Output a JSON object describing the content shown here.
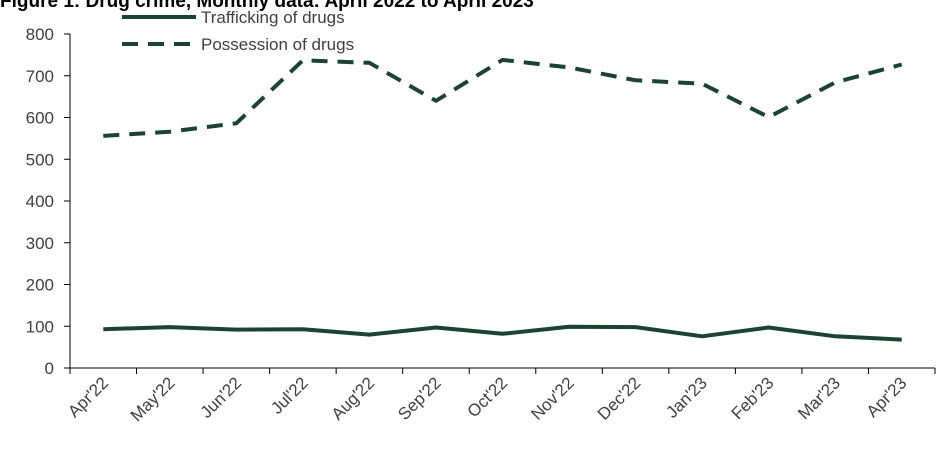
{
  "title": "Figure 1: Drug crime, Monthly data: April 2022 to April 2023",
  "chart_data": {
    "type": "line",
    "title": "Figure 1: Drug crime, Monthly data: April 2022 to April 2023",
    "xlabel": "",
    "ylabel": "",
    "categories": [
      "Apr'22",
      "May'22",
      "Jun'22",
      "Jul'22",
      "Aug'22",
      "Sep'22",
      "Oct'22",
      "Nov'22",
      "Dec'22",
      "Jan'23",
      "Feb'23",
      "Mar'23",
      "Apr'23"
    ],
    "ylim": [
      0,
      800
    ],
    "yticks": [
      0,
      100,
      200,
      300,
      400,
      500,
      600,
      700,
      800
    ],
    "grid": false,
    "legend_position": "top-left",
    "series": [
      {
        "name": "Trafficking of drugs",
        "style": "solid",
        "values": [
          93,
          98,
          92,
          93,
          80,
          97,
          82,
          99,
          98,
          76,
          97,
          76,
          68
        ]
      },
      {
        "name": "Possession of drugs",
        "style": "dashed",
        "values": [
          556,
          566,
          586,
          737,
          731,
          640,
          738,
          720,
          689,
          681,
          601,
          684,
          727
        ]
      }
    ],
    "colors": {
      "series": "#1b4332",
      "axis": "#000000",
      "text": "#404040"
    }
  }
}
